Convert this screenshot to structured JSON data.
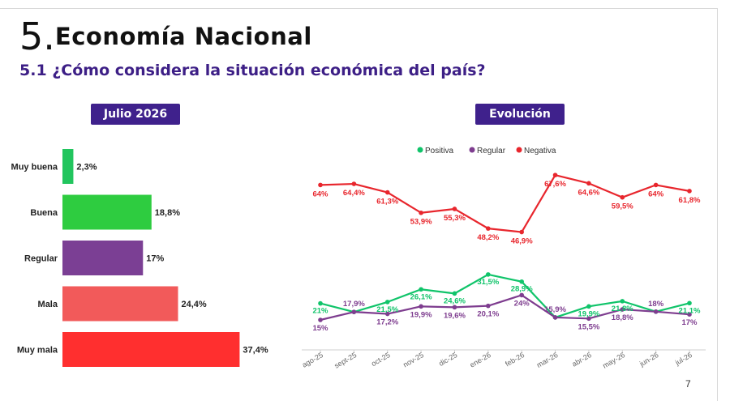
{
  "header": {
    "section_number": "5.",
    "section_title": "Economía Nacional",
    "question": "5.1 ¿Cómo considera la situación económica del país?"
  },
  "left_panel": {
    "pill_label": "Julio 2026"
  },
  "right_panel": {
    "pill_label": "Evolución"
  },
  "page_number": "7",
  "chart_data": [
    {
      "type": "bar",
      "orientation": "horizontal",
      "categories": [
        "Muy buena",
        "Buena",
        "Regular",
        "Mala",
        "Muy mala"
      ],
      "values": [
        2.3,
        18.8,
        17,
        24.4,
        37.4
      ],
      "value_labels": [
        "2,3%",
        "18,8%",
        "17%",
        "24,4%",
        "37,4%"
      ],
      "colors": [
        "#22c55e",
        "#2ecc40",
        "#7b3f94",
        "#f25a5a",
        "#ff2f2f"
      ]
    },
    {
      "type": "line",
      "x": [
        "ago-25",
        "sept-25",
        "oct-25",
        "nov-25",
        "dic-25",
        "ene-26",
        "feb-26",
        "mar-26",
        "abr-26",
        "may-26",
        "jun-26",
        "jul-26"
      ],
      "legend_position": "top",
      "series": [
        {
          "name": "Positiva",
          "color": "#10c46a",
          "values": [
            21,
            17.9,
            21.5,
            26.1,
            24.6,
            31.5,
            28.9,
            15.9,
            19.9,
            21.8,
            18,
            21.1
          ],
          "labels": [
            "21%",
            "",
            "21,5%",
            "26,1%",
            "24,6%",
            "31,5%",
            "28,9%",
            "",
            "19,9%",
            "21,8%",
            "",
            "21,1%"
          ]
        },
        {
          "name": "Regular",
          "color": "#7e3d8f",
          "values": [
            15,
            17.9,
            17.2,
            19.9,
            19.6,
            20.1,
            24,
            15.9,
            15.5,
            18.8,
            18,
            17
          ],
          "labels": [
            "15%",
            "17,9%",
            "17,2%",
            "19,9%",
            "19,6%",
            "20,1%",
            "24%",
            "15,9%",
            "15,5%",
            "18,8%",
            "18%",
            "17%"
          ]
        },
        {
          "name": "Negativa",
          "color": "#e8262d",
          "values": [
            64,
            64.4,
            61.3,
            53.9,
            55.3,
            48.2,
            46.9,
            67.6,
            64.6,
            59.5,
            64,
            61.8
          ],
          "labels": [
            "64%",
            "64,4%",
            "61,3%",
            "53,9%",
            "55,3%",
            "48,2%",
            "46,9%",
            "67,6%",
            "64,6%",
            "59,5%",
            "64%",
            "61,8%"
          ]
        }
      ]
    }
  ]
}
